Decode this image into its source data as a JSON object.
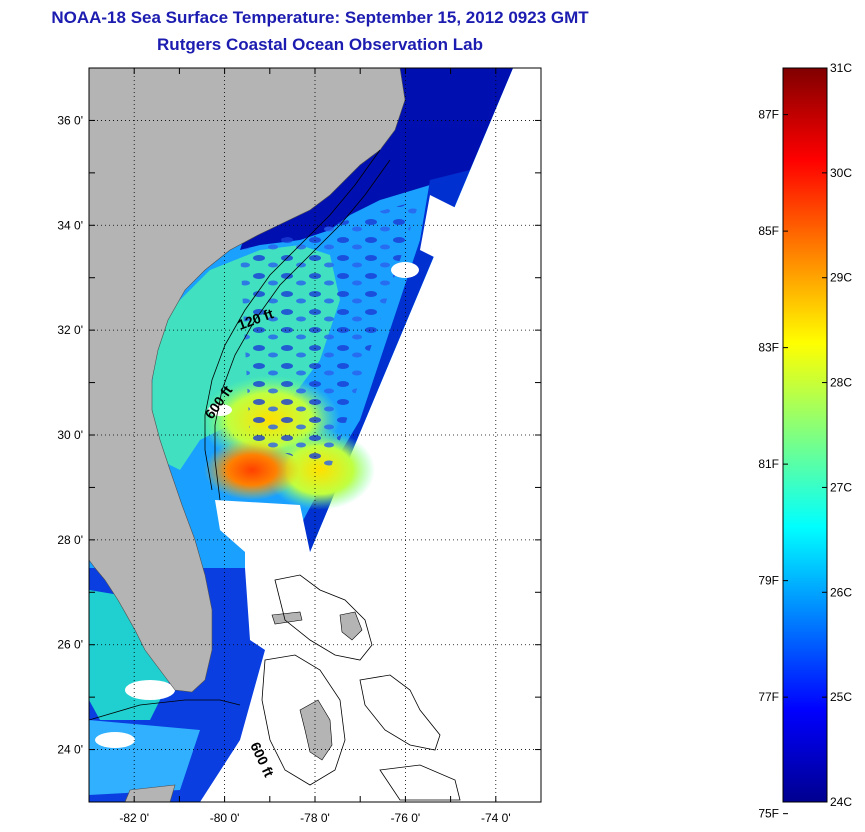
{
  "title": {
    "line1": "NOAA-18 Sea Surface Temperature:  September 15, 2012 0923 GMT",
    "line2": "Rutgers Coastal Ocean Observation Lab"
  },
  "map": {
    "lon_range": [
      -83,
      -73
    ],
    "lat_range": [
      23,
      37
    ],
    "lat_ticks": [
      {
        "value": 24,
        "label": "24 0'"
      },
      {
        "value": 26,
        "label": "26 0'"
      },
      {
        "value": 28,
        "label": "28 0'"
      },
      {
        "value": 30,
        "label": "30 0'"
      },
      {
        "value": 32,
        "label": "32 0'"
      },
      {
        "value": 34,
        "label": "34 0'"
      },
      {
        "value": 36,
        "label": "36 0'"
      }
    ],
    "lon_ticks": [
      {
        "value": -82,
        "label": "-82 0'"
      },
      {
        "value": -80,
        "label": "-80 0'"
      },
      {
        "value": -78,
        "label": "-78 0'"
      },
      {
        "value": -76,
        "label": "-76 0'"
      },
      {
        "value": -74,
        "label": "-74 0'"
      }
    ],
    "contour_labels": [
      {
        "text": "120 ft"
      },
      {
        "text": "600 ft"
      },
      {
        "text": "600 ft"
      }
    ],
    "land_color": "#b4b4b4",
    "grid": "dotted"
  },
  "colorbar": {
    "celsius_range": [
      24,
      31
    ],
    "celsius_labels": [
      {
        "value": 31,
        "label": "31C"
      },
      {
        "value": 30,
        "label": "30C"
      },
      {
        "value": 29,
        "label": "29C"
      },
      {
        "value": 28,
        "label": "28C"
      },
      {
        "value": 27,
        "label": "27C"
      },
      {
        "value": 26,
        "label": "26C"
      },
      {
        "value": 25,
        "label": "25C"
      },
      {
        "value": 24,
        "label": "24C"
      }
    ],
    "fahrenheit_labels": [
      {
        "value": 87,
        "label": "87F"
      },
      {
        "value": 85,
        "label": "85F"
      },
      {
        "value": 83,
        "label": "83F"
      },
      {
        "value": 81,
        "label": "81F"
      },
      {
        "value": 79,
        "label": "79F"
      },
      {
        "value": 77,
        "label": "77F"
      },
      {
        "value": 75,
        "label": "75F"
      }
    ],
    "colormap": [
      "#00008f",
      "#0000ff",
      "#0080ff",
      "#00ffff",
      "#80ff80",
      "#ffff00",
      "#ff8000",
      "#ff0000",
      "#800000"
    ]
  }
}
